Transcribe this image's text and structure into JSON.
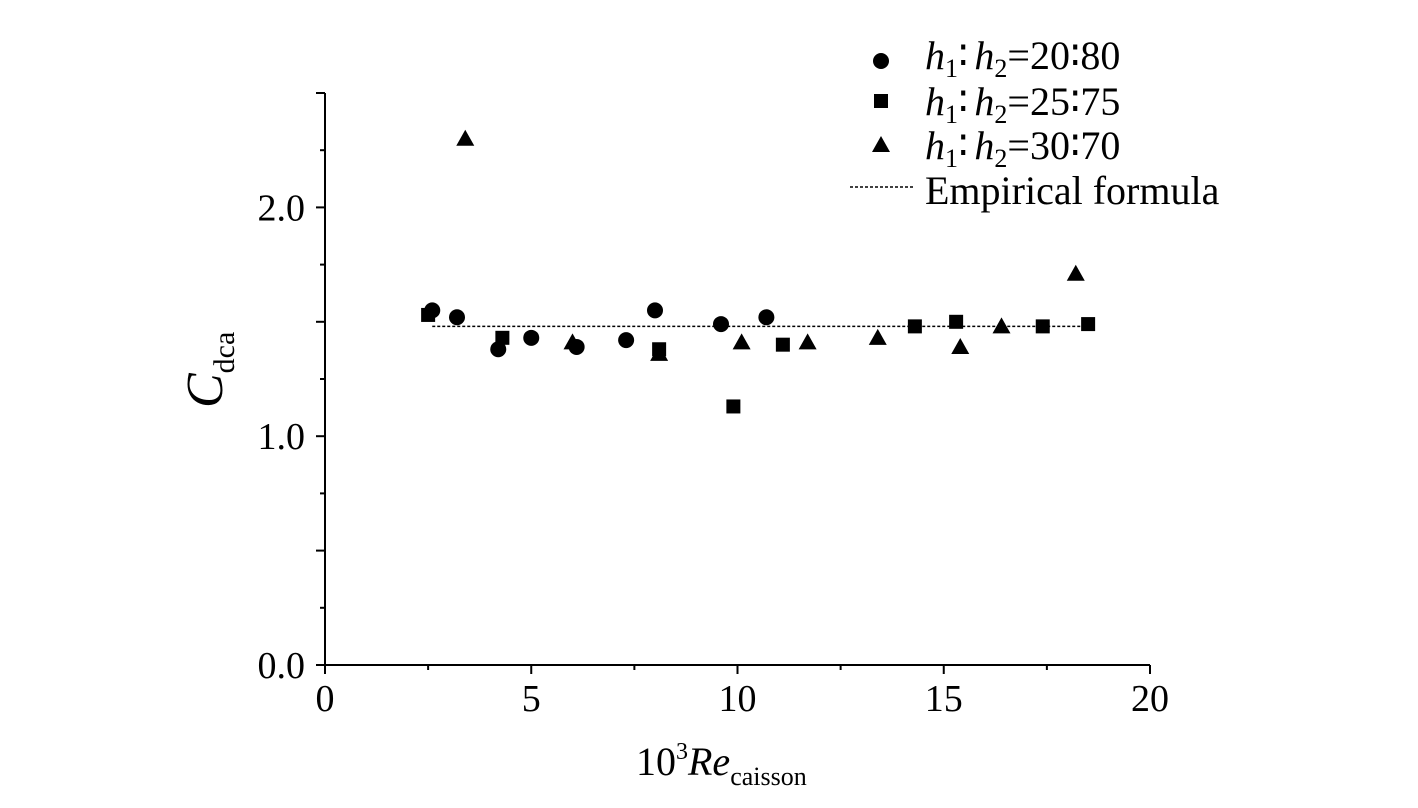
{
  "chart_data": {
    "type": "scatter",
    "xlim": [
      0,
      20
    ],
    "ylim": [
      0,
      2.5
    ],
    "xticks": [
      0,
      5,
      10,
      15,
      20
    ],
    "xtick_labels": [
      "0",
      "5",
      "10",
      "15",
      "20"
    ],
    "yticks": [
      0,
      1,
      2
    ],
    "ytick_labels": [
      "0.0",
      "1.0",
      "2.0"
    ],
    "xlabel": {
      "prefix": "10",
      "sup": "3",
      "main": "Re",
      "sub": "caisson"
    },
    "ylabel": {
      "main": "C",
      "sub": "dca"
    },
    "grid": false,
    "legend_position": "top-right",
    "series": [
      {
        "name": "h1 : h2=20 : 80",
        "label": {
          "a": "h",
          "a_sub": "1",
          "colon": "∶",
          "b": "h",
          "b_sub": "2",
          "ratio": "=20∶80"
        },
        "marker": "circle",
        "points": [
          [
            2.6,
            1.55
          ],
          [
            3.2,
            1.52
          ],
          [
            4.2,
            1.38
          ],
          [
            5.0,
            1.43
          ],
          [
            6.1,
            1.39
          ],
          [
            7.3,
            1.42
          ],
          [
            8.0,
            1.55
          ],
          [
            9.6,
            1.49
          ],
          [
            10.7,
            1.52
          ]
        ]
      },
      {
        "name": "h1 : h2=25 : 75",
        "label": {
          "a": "h",
          "a_sub": "1",
          "colon": "∶",
          "b": "h",
          "b_sub": "2",
          "ratio": "=25∶75"
        },
        "marker": "square",
        "points": [
          [
            2.5,
            1.53
          ],
          [
            4.3,
            1.43
          ],
          [
            8.1,
            1.38
          ],
          [
            9.9,
            1.13
          ],
          [
            11.1,
            1.4
          ],
          [
            14.3,
            1.48
          ],
          [
            15.3,
            1.5
          ],
          [
            17.4,
            1.48
          ],
          [
            18.5,
            1.49
          ]
        ]
      },
      {
        "name": "h1 : h2=30 : 70",
        "label": {
          "a": "h",
          "a_sub": "1",
          "colon": "∶",
          "b": "h",
          "b_sub": "2",
          "ratio": "=30∶70"
        },
        "marker": "triangle",
        "points": [
          [
            3.4,
            2.3
          ],
          [
            6.0,
            1.41
          ],
          [
            8.1,
            1.36
          ],
          [
            10.1,
            1.41
          ],
          [
            11.7,
            1.41
          ],
          [
            13.4,
            1.43
          ],
          [
            15.4,
            1.39
          ],
          [
            16.4,
            1.48
          ],
          [
            18.2,
            1.71
          ]
        ]
      }
    ],
    "lines": [
      {
        "name": "Empirical formula",
        "style": "dotted",
        "x": [
          2.6,
          18.5
        ],
        "y": [
          1.48,
          1.48
        ]
      }
    ]
  }
}
